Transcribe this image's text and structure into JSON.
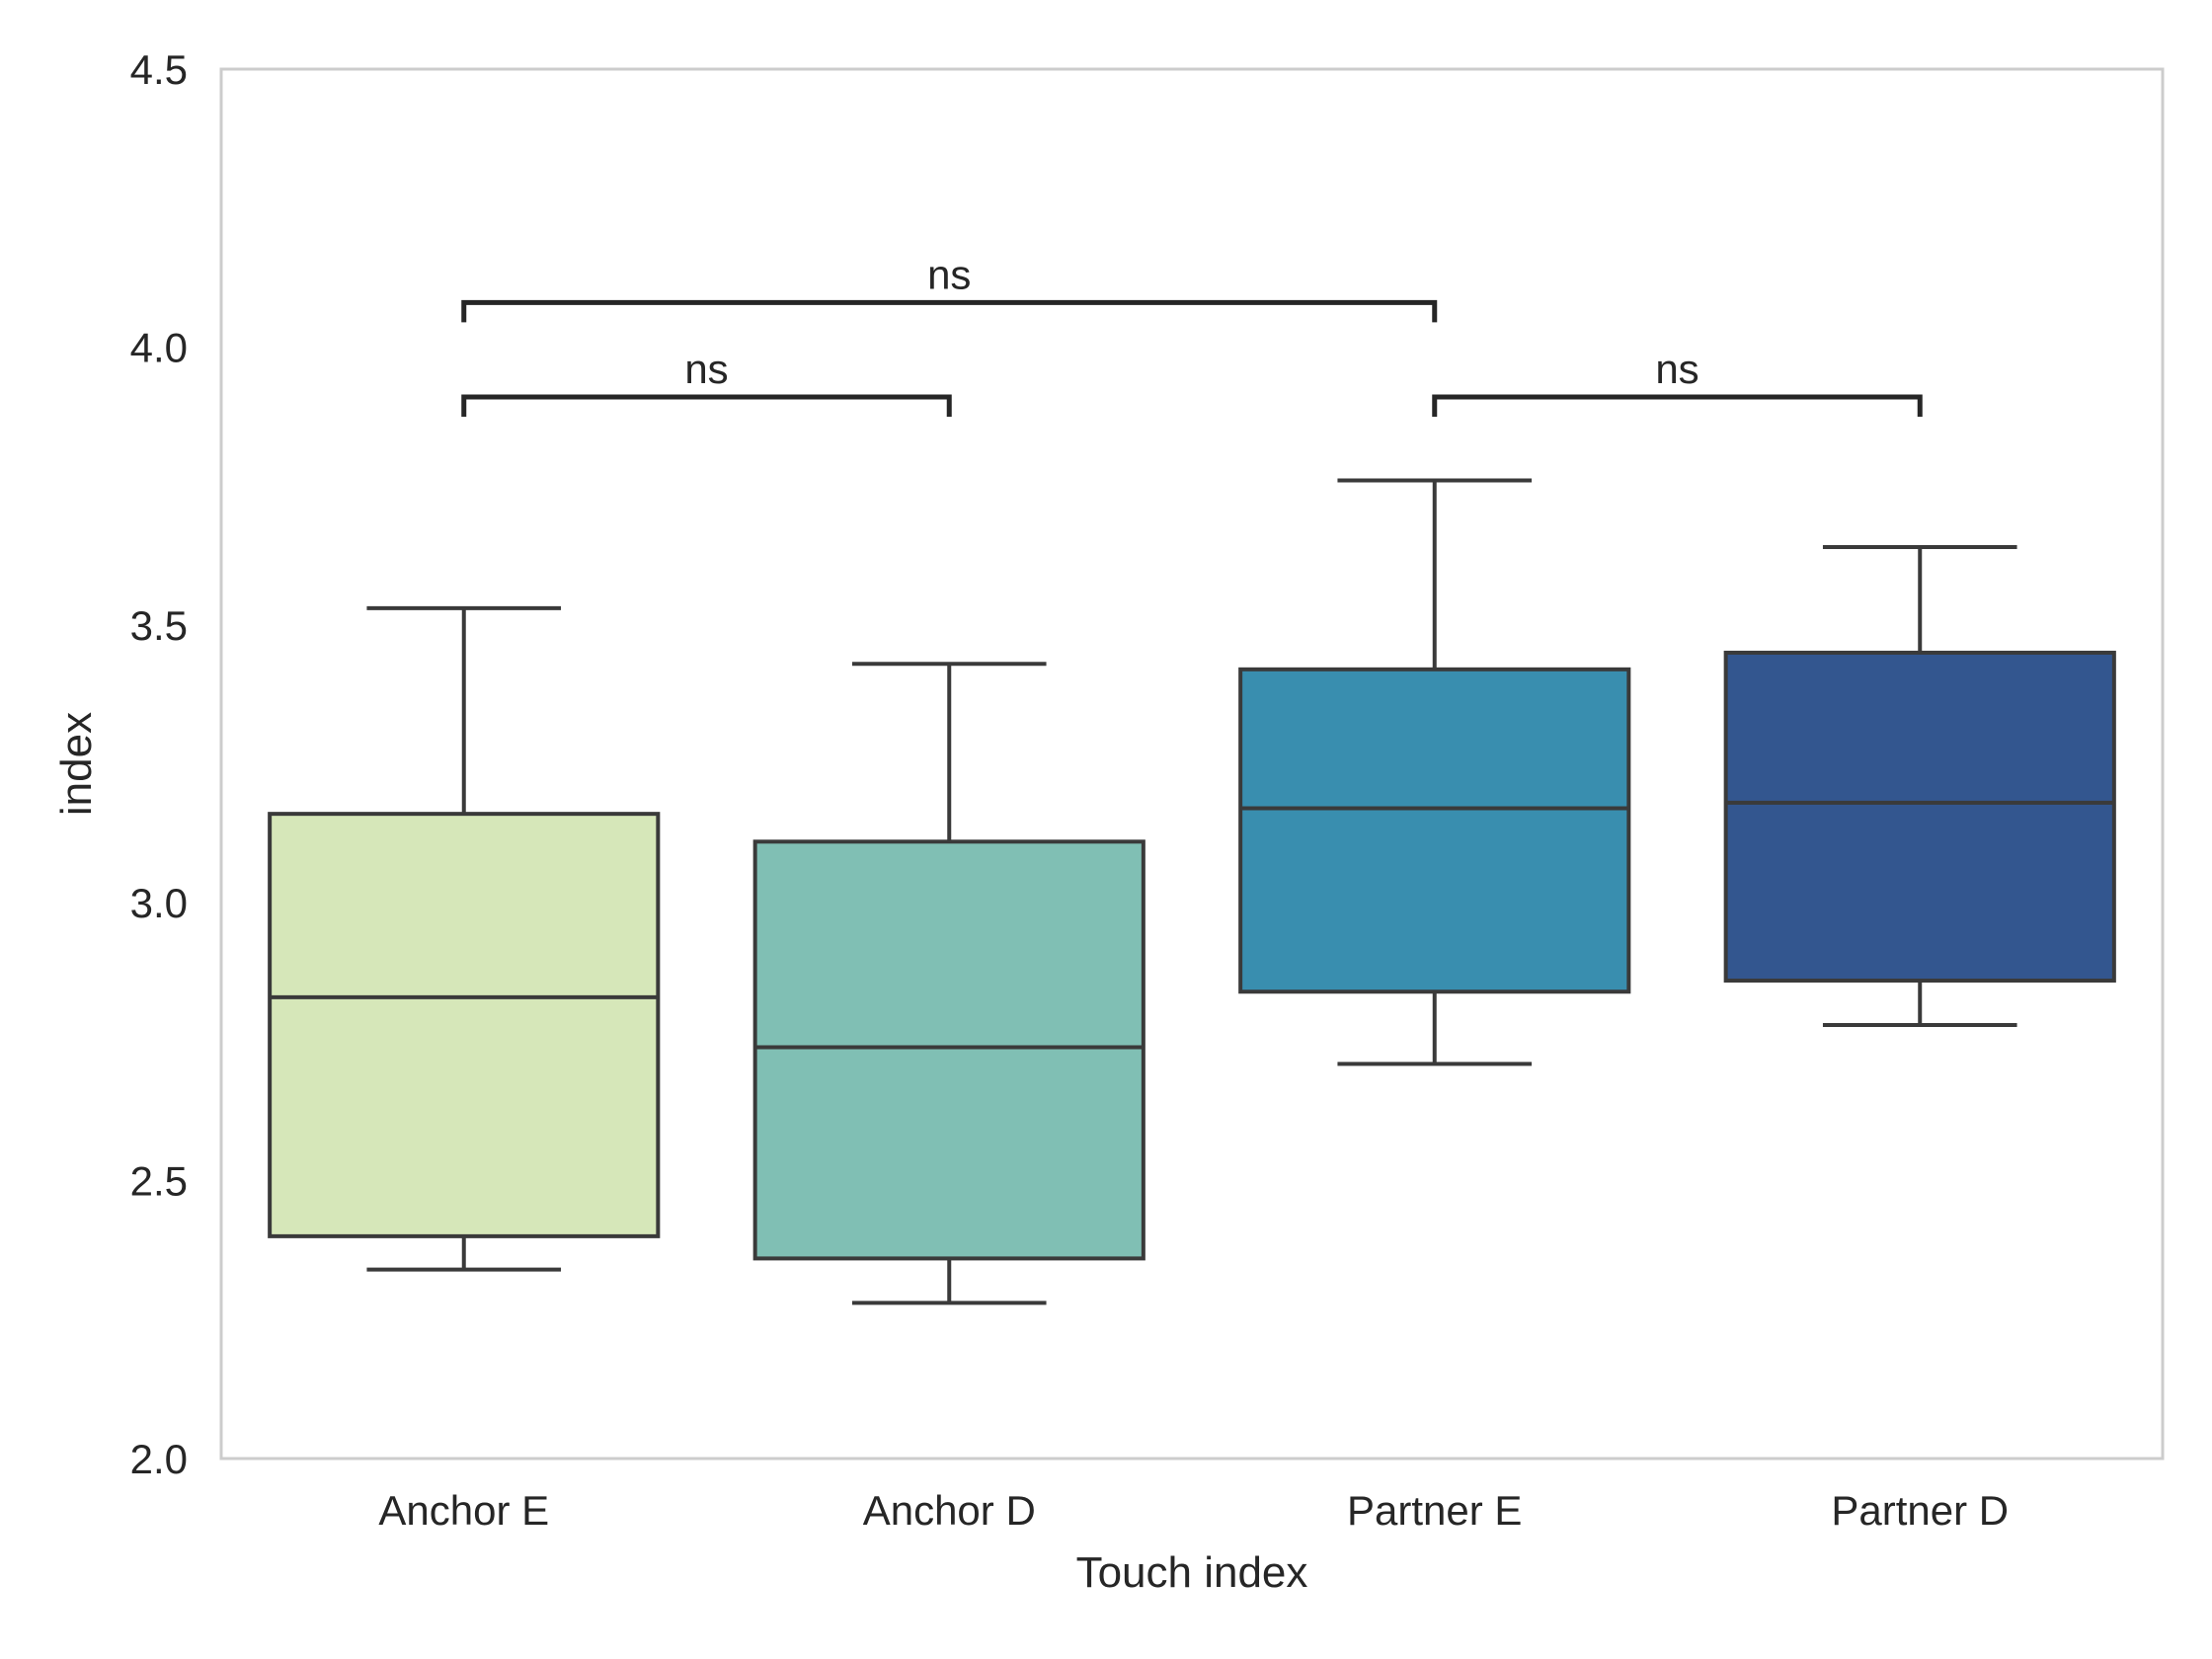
{
  "chart_data": {
    "type": "box",
    "title": "",
    "xlabel": "Touch index",
    "ylabel": "index",
    "ylim": [
      2.0,
      4.5
    ],
    "yticks": [
      2.0,
      2.5,
      3.0,
      3.5,
      4.0,
      4.5
    ],
    "ytick_labels": [
      "2.0",
      "2.5",
      "3.0",
      "3.5",
      "4.0",
      "4.5"
    ],
    "grid": false,
    "categories": [
      "Anchor E",
      "Anchor D",
      "Partner E",
      "Partner D"
    ],
    "boxes": [
      {
        "category": "Anchor E",
        "whisker_low": 2.34,
        "q1": 2.4,
        "median": 2.83,
        "q3": 3.16,
        "whisker_high": 3.53,
        "color": "#d6e7b9"
      },
      {
        "category": "Anchor D",
        "whisker_low": 2.28,
        "q1": 2.36,
        "median": 2.74,
        "q3": 3.11,
        "whisker_high": 3.43,
        "color": "#80bfb4"
      },
      {
        "category": "Partner E",
        "whisker_low": 2.71,
        "q1": 2.84,
        "median": 3.17,
        "q3": 3.42,
        "whisker_high": 3.76,
        "color": "#398eaf"
      },
      {
        "category": "Partner D",
        "whisker_low": 2.78,
        "q1": 2.86,
        "median": 3.18,
        "q3": 3.45,
        "whisker_high": 3.64,
        "color": "#33568f"
      }
    ],
    "annotations": [
      {
        "from": "Anchor E",
        "to": "Anchor D",
        "y": 3.91,
        "label": "ns"
      },
      {
        "from": "Partner E",
        "to": "Partner D",
        "y": 3.91,
        "label": "ns"
      },
      {
        "from": "Anchor E",
        "to": "Partner E",
        "y": 4.08,
        "label": "ns"
      }
    ],
    "colors": {
      "line": "#3a3a3a",
      "spine": "#cccccc",
      "annotation": "#262626"
    }
  }
}
